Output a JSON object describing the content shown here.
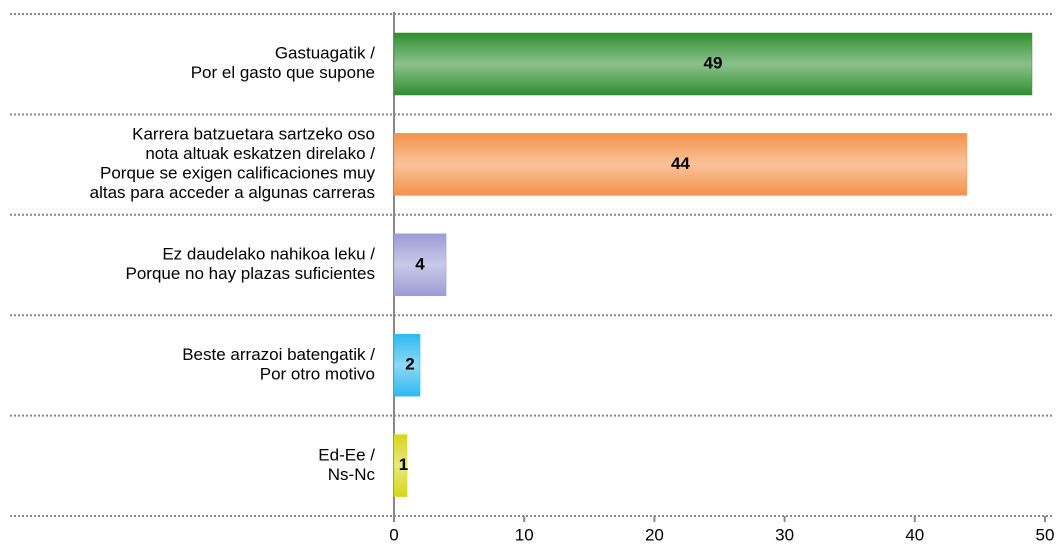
{
  "chart_data": {
    "type": "bar",
    "orientation": "horizontal",
    "categories": [
      [
        "Gastuagatik /",
        "Por el gasto que supone"
      ],
      [
        "Karrera batzuetara sartzeko oso",
        "nota altuak eskatzen direlako /",
        "Porque se exigen calificaciones muy",
        "altas para acceder a algunas carreras"
      ],
      [
        "Ez daudelako nahikoa leku /",
        "Porque no hay plazas suficientes"
      ],
      [
        "Beste arrazoi batengatik /",
        "Por otro motivo"
      ],
      [
        "Ed-Ee /",
        "Ns-Nc"
      ]
    ],
    "values": [
      49,
      44,
      4,
      2,
      1
    ],
    "colors": [
      "#2f8f2f",
      "#f5914a",
      "#9c9cd6",
      "#2fb8ee",
      "#d6d61a"
    ],
    "xlim": [
      0,
      50
    ],
    "xticks": [
      0,
      10,
      20,
      30,
      40,
      50
    ]
  }
}
